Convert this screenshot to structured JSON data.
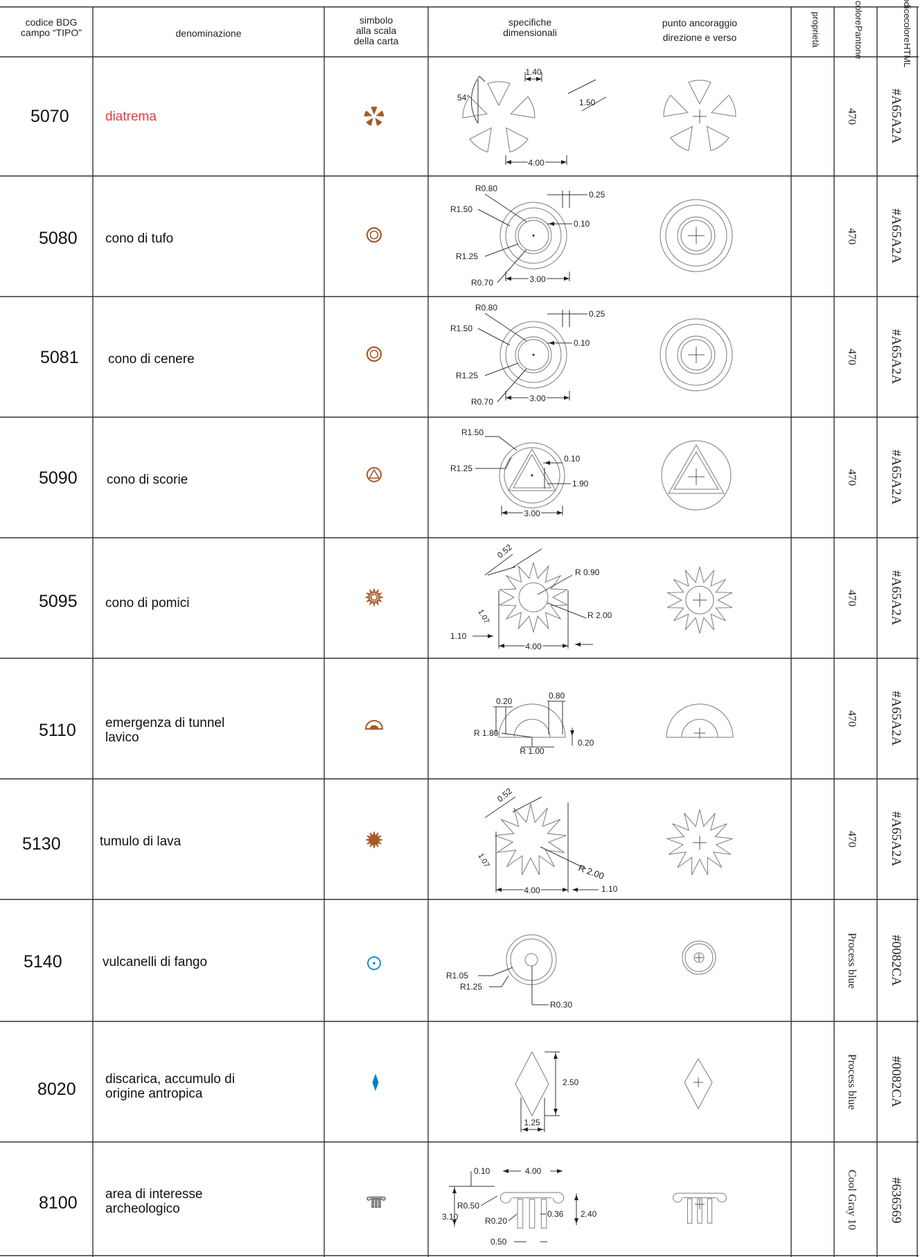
{
  "header": {
    "codice_l1": "codice BDG",
    "codice_l2": "campo “TIPO”",
    "denominazione": "denominazione",
    "simbolo_l1": "simbolo",
    "simbolo_l2": "alla scala",
    "simbolo_l3": "della carta",
    "specifiche_l1": "specifiche",
    "specifiche_l2": "dimensionali",
    "punto_l1": "punto ancoraggio",
    "punto_l2": "direzione e verso",
    "proprieta": "proprietà",
    "pantone_l1": "colore",
    "pantone_l2": "Pantone",
    "html_l1": "codice",
    "html_l2": "colore",
    "html_l3": "HTML"
  },
  "colors": {
    "brown": "#A65A2A",
    "blue": "#0082CA",
    "gray": "#636569",
    "highlight_text": "#e8383d",
    "drawing_line": "#7a7a7a",
    "grid_line": "#333333"
  },
  "rows": [
    {
      "code": "5070",
      "name_l1": "diatrema",
      "name_l2": "",
      "pantone": "470",
      "html": "#A65A2A",
      "symbol": "diatrema-icon",
      "dims": {
        "a": "54°",
        "b": "1.40",
        "c": "1.50",
        "d": "4.00"
      }
    },
    {
      "code": "5080",
      "name_l1": "cono di tufo",
      "name_l2": "",
      "pantone": "470",
      "html": "#A65A2A",
      "symbol": "double-ring-icon",
      "dims": {
        "a": "R0.80",
        "b": "0.25",
        "c": "R1.50",
        "d": "0.10",
        "e": "R1.25",
        "f": "R0.70",
        "g": "3.00"
      }
    },
    {
      "code": "5081",
      "name_l1": "cono di cenere",
      "name_l2": "",
      "pantone": "470",
      "html": "#A65A2A",
      "symbol": "double-ring-icon",
      "dims": {
        "a": "R0.80",
        "b": "0.25",
        "c": "R1.50",
        "d": "0.10",
        "e": "R1.25",
        "f": "R0.70",
        "g": "3.00"
      }
    },
    {
      "code": "5090",
      "name_l1": "cono di scorie",
      "name_l2": "",
      "pantone": "470",
      "html": "#A65A2A",
      "symbol": "triangle-ring-icon",
      "dims": {
        "a": "R1.50",
        "b": "0.10",
        "c": "R1.25",
        "d": "1.90",
        "e": "3.00"
      }
    },
    {
      "code": "5095",
      "name_l1": "cono di pomici",
      "name_l2": "",
      "pantone": "470",
      "html": "#A65A2A",
      "symbol": "sun-star-icon",
      "dims": {
        "a": "0.52",
        "b": "R 0.90",
        "c": "1.07",
        "d": "R 2.00",
        "e": "1.10",
        "f": "4.00"
      }
    },
    {
      "code": "5110",
      "name_l1": "emergenza di tunnel",
      "name_l2": "lavico",
      "pantone": "470",
      "html": "#A65A2A",
      "symbol": "half-dome-icon",
      "dims": {
        "a": "0.20",
        "b": "0.80",
        "c": "R 1.80",
        "d": "0.20",
        "e": "R 1.00"
      }
    },
    {
      "code": "5130",
      "name_l1": "tumulo di lava",
      "name_l2": "",
      "pantone": "470",
      "html": "#A65A2A",
      "symbol": "filled-star-icon",
      "dims": {
        "a": "0.52",
        "b": "1.10",
        "c": "1.07",
        "d": "R 2.00",
        "e": "4.00"
      }
    },
    {
      "code": "5140",
      "name_l1": "vulcanelli di fango",
      "name_l2": "",
      "pantone": "Process blue",
      "html": "#0082CA",
      "symbol": "dot-ring-icon",
      "dims": {
        "a": "R1.05",
        "b": "R1.25",
        "c": "R0.30"
      }
    },
    {
      "code": "8020",
      "name_l1": "discarica, accumulo di",
      "name_l2": "origine antropica",
      "pantone": "Process blue",
      "html": "#0082CA",
      "symbol": "diamond-icon",
      "dims": {
        "a": "2.50",
        "b": "1.25"
      }
    },
    {
      "code": "8100",
      "name_l1": "area di interesse",
      "name_l2": "archeologico",
      "pantone": "Cool Gray 10",
      "html": "#636569",
      "symbol": "column-icon",
      "dims": {
        "a": "0.10",
        "b": "4.00",
        "c": "R0.50",
        "d": "R0.20",
        "e": "0.36",
        "f": "2.40",
        "g": "3.10",
        "h": "0.50"
      }
    }
  ]
}
